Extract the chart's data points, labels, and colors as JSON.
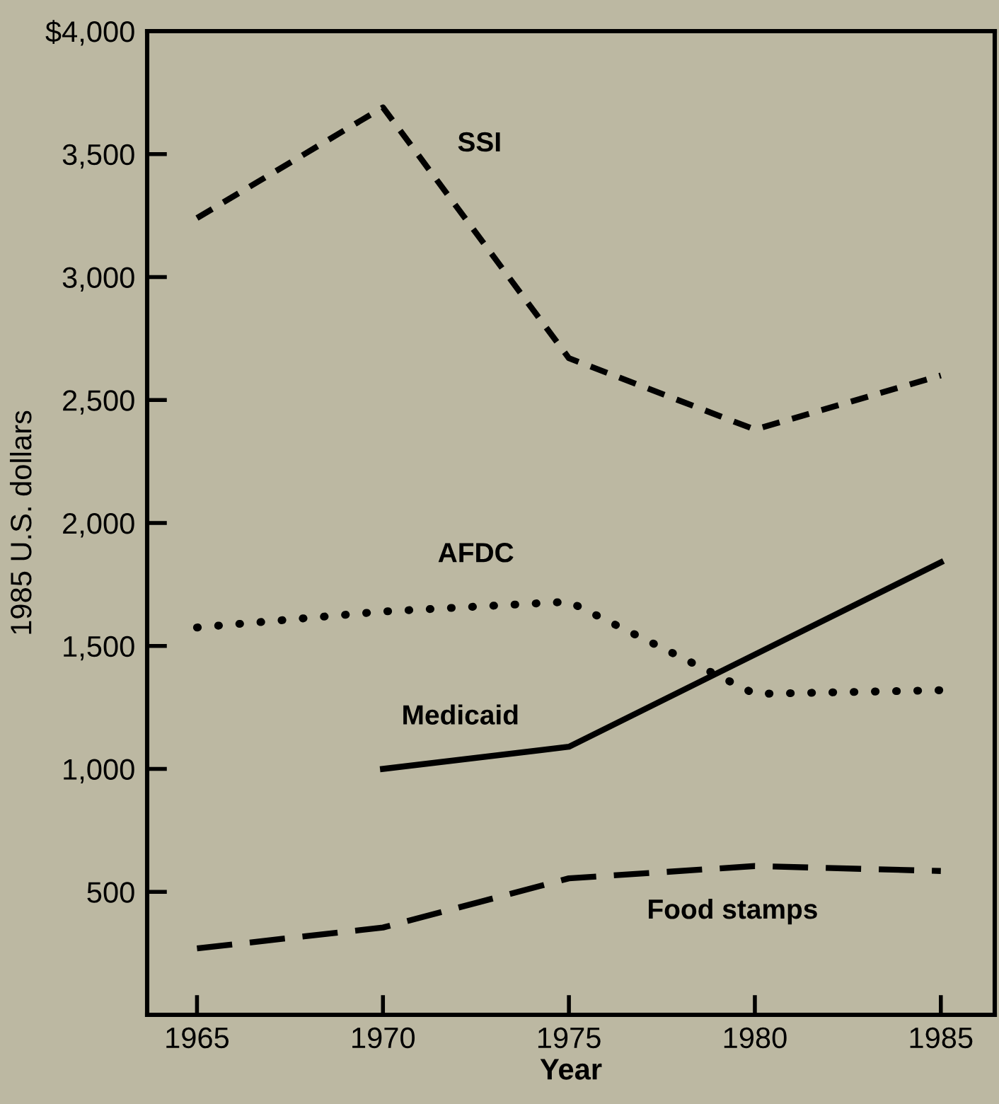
{
  "chart_data": {
    "type": "line",
    "xlabel": "Year",
    "ylabel": "1985 U.S. dollars",
    "x": [
      1965,
      1970,
      1975,
      1980,
      1985
    ],
    "xlim": [
      1963.66,
      1986.45
    ],
    "xticks": [
      1965,
      1970,
      1975,
      1980,
      1985
    ],
    "ylim": [
      0,
      4000
    ],
    "yticks": [
      {
        "value": 500,
        "label": "500"
      },
      {
        "value": 1000,
        "label": "1,000"
      },
      {
        "value": 1500,
        "label": "1,500"
      },
      {
        "value": 2000,
        "label": "2,000"
      },
      {
        "value": 2500,
        "label": "2,500"
      },
      {
        "value": 3000,
        "label": "3,000"
      },
      {
        "value": 3500,
        "label": "3,500"
      },
      {
        "value": 4000,
        "label": "$4,000"
      }
    ],
    "grid": false,
    "legend": false,
    "marker": "none",
    "series": [
      {
        "name": "SSI",
        "color": "#000000",
        "line_style": "dashed",
        "values": [
          3240,
          3690,
          2670,
          2380,
          2600
        ]
      },
      {
        "name": "AFDC",
        "color": "#000000",
        "line_style": "dotted",
        "values": [
          1575,
          1640,
          1680,
          1305,
          1320
        ]
      },
      {
        "name": "Medicaid",
        "color": "#000000",
        "line_style": "solid",
        "values": [
          null,
          1000,
          1090,
          null,
          1840
        ]
      },
      {
        "name": "Food stamps",
        "color": "#000000",
        "line_style": "dashed",
        "values": [
          270,
          355,
          555,
          605,
          585
        ]
      }
    ]
  }
}
